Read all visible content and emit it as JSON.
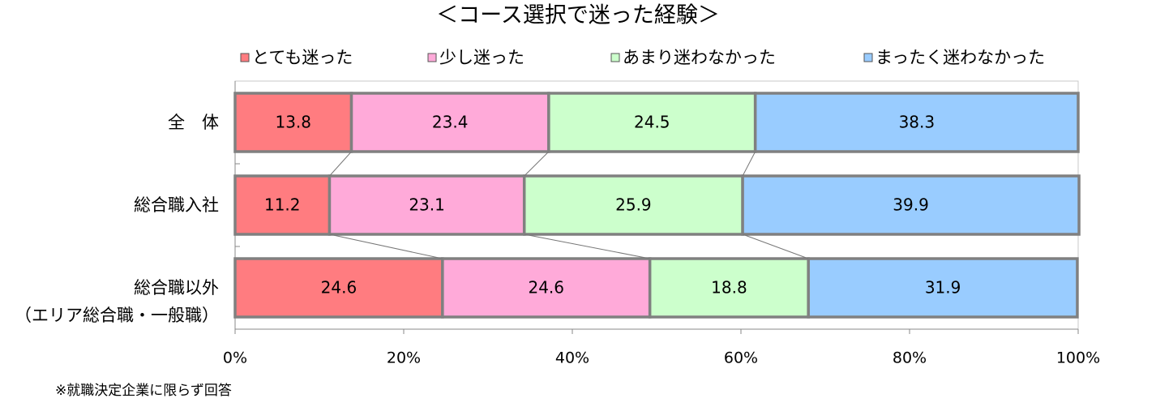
{
  "chart_data": {
    "type": "stacked_bar_horizontal_percent",
    "title": "＜コース選択で迷った経験＞",
    "categories": [
      "全　体",
      "総合職入社",
      "総合職以外\n（エリア総合職・一般職）"
    ],
    "series": [
      {
        "name": "とても迷った",
        "color": "#ff7c80",
        "values": [
          13.8,
          11.2,
          24.6
        ]
      },
      {
        "name": "少し迷った",
        "color": "#ffaad9",
        "values": [
          23.4,
          23.1,
          24.6
        ]
      },
      {
        "name": "あまり迷わなかった",
        "color": "#ccffcc",
        "values": [
          24.5,
          25.9,
          18.8
        ]
      },
      {
        "name": "まったく迷わなかった",
        "color": "#99ccff",
        "values": [
          38.3,
          39.9,
          31.9
        ]
      }
    ],
    "xlim": [
      0,
      100
    ],
    "xticks": [
      {
        "value": 0,
        "label": "0%"
      },
      {
        "value": 20,
        "label": "20%"
      },
      {
        "value": 40,
        "label": "40%"
      },
      {
        "value": 60,
        "label": "60%"
      },
      {
        "value": 80,
        "label": "80%"
      },
      {
        "value": 100,
        "label": "100%"
      }
    ],
    "series_lines": true,
    "legend": "top",
    "note": "※就職決定企業に限らず回答"
  }
}
